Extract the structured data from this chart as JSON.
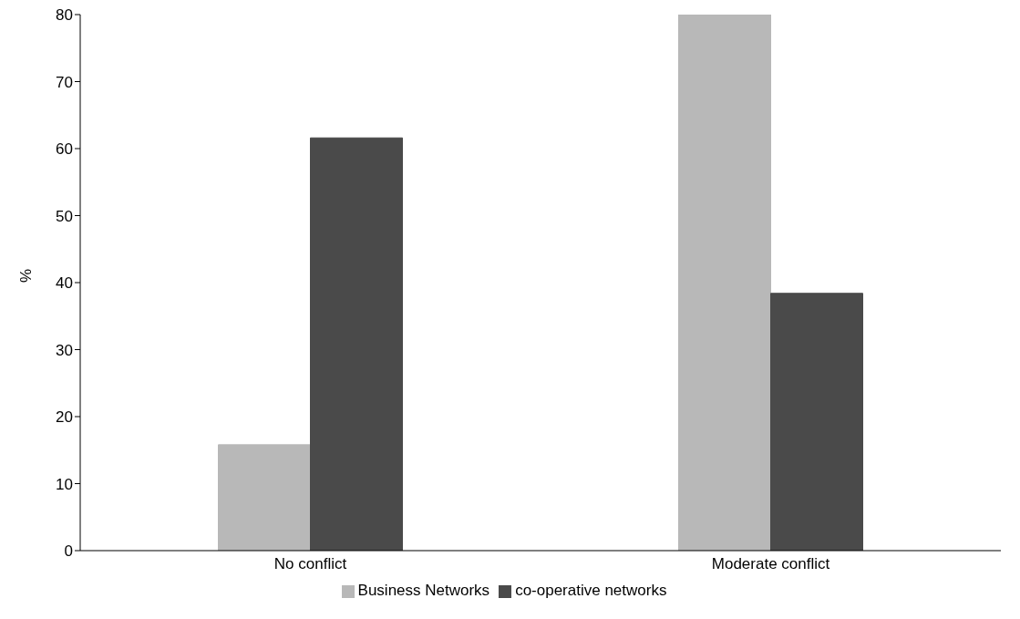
{
  "chart_data": {
    "type": "bar",
    "ylabel": "%",
    "categories": [
      "No conflict",
      "Moderate conflict"
    ],
    "series": [
      {
        "name": "Business Networks",
        "color": "#b8b8b8",
        "values": [
          15.8,
          80
        ]
      },
      {
        "name": "co-operative networks",
        "color": "#4a4a4a",
        "values": [
          61.6,
          38.4
        ]
      }
    ],
    "ylim": [
      0,
      80
    ],
    "yticks": [
      0,
      10,
      20,
      30,
      40,
      50,
      60,
      70,
      80
    ],
    "grid": false,
    "legend": "bottom"
  }
}
